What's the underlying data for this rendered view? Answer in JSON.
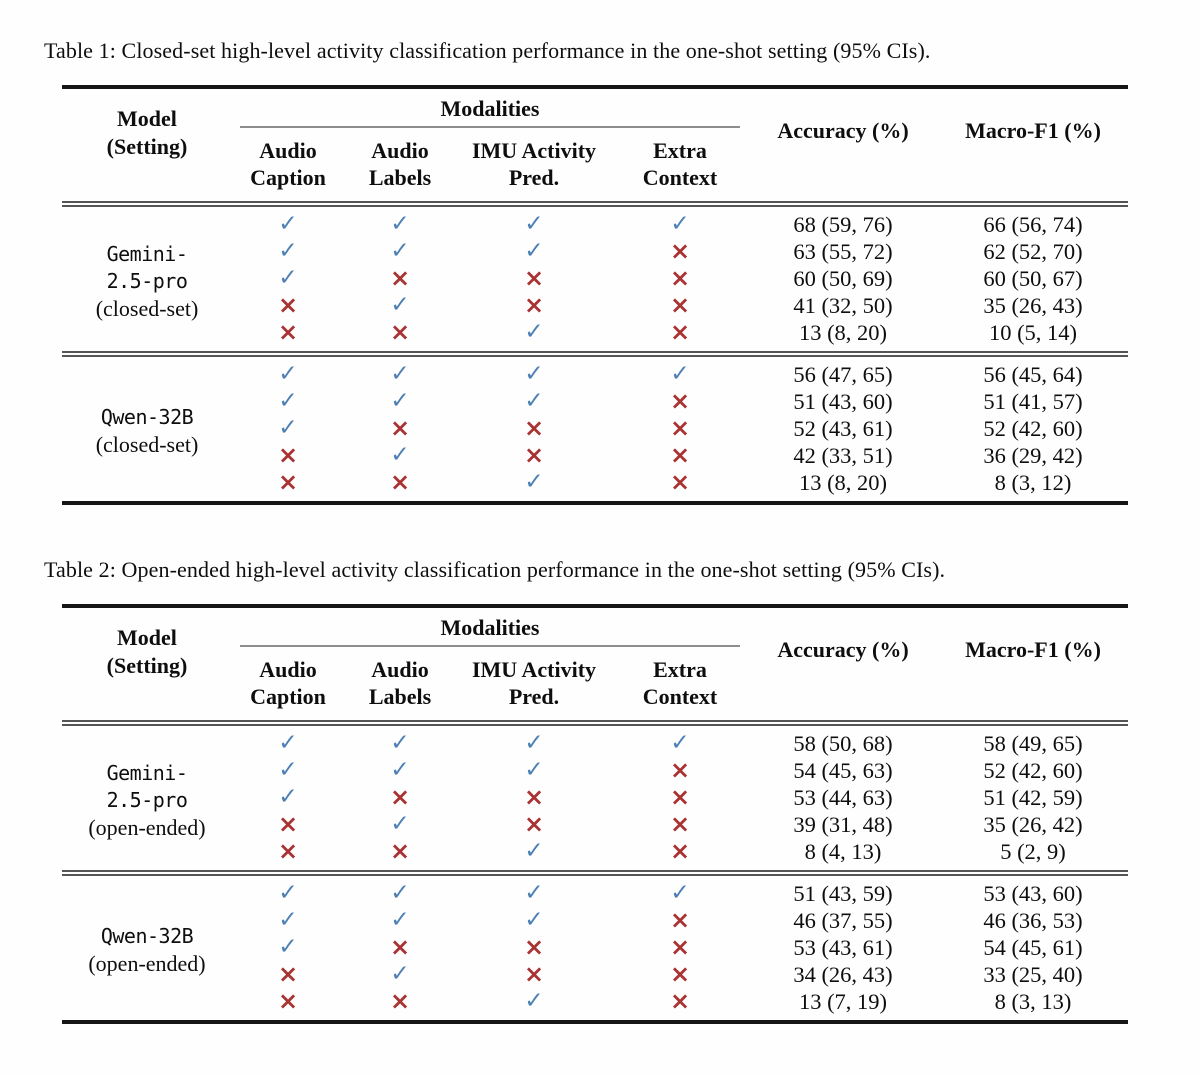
{
  "colors": {
    "check": "#4c80b4",
    "cross": "#a93232",
    "outer_rule": "#161616",
    "inner_rule": "#555555",
    "modality_rule": "#8d8d8d"
  },
  "glyphs": {
    "check": "✓",
    "cross": "×"
  },
  "tables": [
    {
      "caption": "Table 1: Closed-set high-level activity classification performance in the one-shot setting (95% CIs).",
      "header": {
        "model_line1": "Model",
        "model_line2": "(Setting)",
        "modalities": "Modalities",
        "columns": [
          {
            "line1": "Audio",
            "line2": "Caption"
          },
          {
            "line1": "Audio",
            "line2": "Labels"
          },
          {
            "line1": "IMU Activity",
            "line2": "Pred."
          },
          {
            "line1": "Extra",
            "line2": "Context"
          }
        ],
        "accuracy": "Accuracy (%)",
        "macro_f1": "Macro-F1 (%)"
      },
      "blocks": [
        {
          "model_lines": [
            "Gemini-",
            "2.5-pro"
          ],
          "setting": "(closed-set)",
          "rows": [
            {
              "marks": [
                true,
                true,
                true,
                true
              ],
              "accuracy": "68 (59, 76)",
              "macro_f1": "66 (56, 74)"
            },
            {
              "marks": [
                true,
                true,
                true,
                false
              ],
              "accuracy": "63 (55, 72)",
              "macro_f1": "62 (52, 70)"
            },
            {
              "marks": [
                true,
                false,
                false,
                false
              ],
              "accuracy": "60 (50, 69)",
              "macro_f1": "60 (50, 67)"
            },
            {
              "marks": [
                false,
                true,
                false,
                false
              ],
              "accuracy": "41 (32, 50)",
              "macro_f1": "35 (26, 43)"
            },
            {
              "marks": [
                false,
                false,
                true,
                false
              ],
              "accuracy": "13 (8, 20)",
              "macro_f1": "10 (5, 14)"
            }
          ]
        },
        {
          "model_lines": [
            "Qwen-32B"
          ],
          "setting": "(closed-set)",
          "rows": [
            {
              "marks": [
                true,
                true,
                true,
                true
              ],
              "accuracy": "56 (47, 65)",
              "macro_f1": "56 (45, 64)"
            },
            {
              "marks": [
                true,
                true,
                true,
                false
              ],
              "accuracy": "51 (43, 60)",
              "macro_f1": "51 (41, 57)"
            },
            {
              "marks": [
                true,
                false,
                false,
                false
              ],
              "accuracy": "52 (43, 61)",
              "macro_f1": "52 (42, 60)"
            },
            {
              "marks": [
                false,
                true,
                false,
                false
              ],
              "accuracy": "42 (33, 51)",
              "macro_f1": "36 (29, 42)"
            },
            {
              "marks": [
                false,
                false,
                true,
                false
              ],
              "accuracy": "13 (8, 20)",
              "macro_f1": "8 (3, 12)"
            }
          ]
        }
      ]
    },
    {
      "caption": "Table 2: Open-ended high-level activity classification performance in the one-shot setting (95% CIs).",
      "header": {
        "model_line1": "Model",
        "model_line2": "(Setting)",
        "modalities": "Modalities",
        "columns": [
          {
            "line1": "Audio",
            "line2": "Caption"
          },
          {
            "line1": "Audio",
            "line2": "Labels"
          },
          {
            "line1": "IMU Activity",
            "line2": "Pred."
          },
          {
            "line1": "Extra",
            "line2": "Context"
          }
        ],
        "accuracy": "Accuracy (%)",
        "macro_f1": "Macro-F1 (%)"
      },
      "blocks": [
        {
          "model_lines": [
            "Gemini-",
            "2.5-pro"
          ],
          "setting": "(open-ended)",
          "rows": [
            {
              "marks": [
                true,
                true,
                true,
                true
              ],
              "accuracy": "58 (50, 68)",
              "macro_f1": "58 (49, 65)"
            },
            {
              "marks": [
                true,
                true,
                true,
                false
              ],
              "accuracy": "54 (45, 63)",
              "macro_f1": "52 (42, 60)"
            },
            {
              "marks": [
                true,
                false,
                false,
                false
              ],
              "accuracy": "53 (44, 63)",
              "macro_f1": "51 (42, 59)"
            },
            {
              "marks": [
                false,
                true,
                false,
                false
              ],
              "accuracy": "39 (31, 48)",
              "macro_f1": "35 (26, 42)"
            },
            {
              "marks": [
                false,
                false,
                true,
                false
              ],
              "accuracy": "8 (4, 13)",
              "macro_f1": "5 (2, 9)"
            }
          ]
        },
        {
          "model_lines": [
            "Qwen-32B"
          ],
          "setting": "(open-ended)",
          "rows": [
            {
              "marks": [
                true,
                true,
                true,
                true
              ],
              "accuracy": "51 (43, 59)",
              "macro_f1": "53 (43, 60)"
            },
            {
              "marks": [
                true,
                true,
                true,
                false
              ],
              "accuracy": "46 (37, 55)",
              "macro_f1": "46 (36, 53)"
            },
            {
              "marks": [
                true,
                false,
                false,
                false
              ],
              "accuracy": "53 (43, 61)",
              "macro_f1": "54 (45, 61)"
            },
            {
              "marks": [
                false,
                true,
                false,
                false
              ],
              "accuracy": "34 (26, 43)",
              "macro_f1": "33 (25, 40)"
            },
            {
              "marks": [
                false,
                false,
                true,
                false
              ],
              "accuracy": "13 (7, 19)",
              "macro_f1": "8 (3, 13)"
            }
          ]
        }
      ]
    }
  ]
}
